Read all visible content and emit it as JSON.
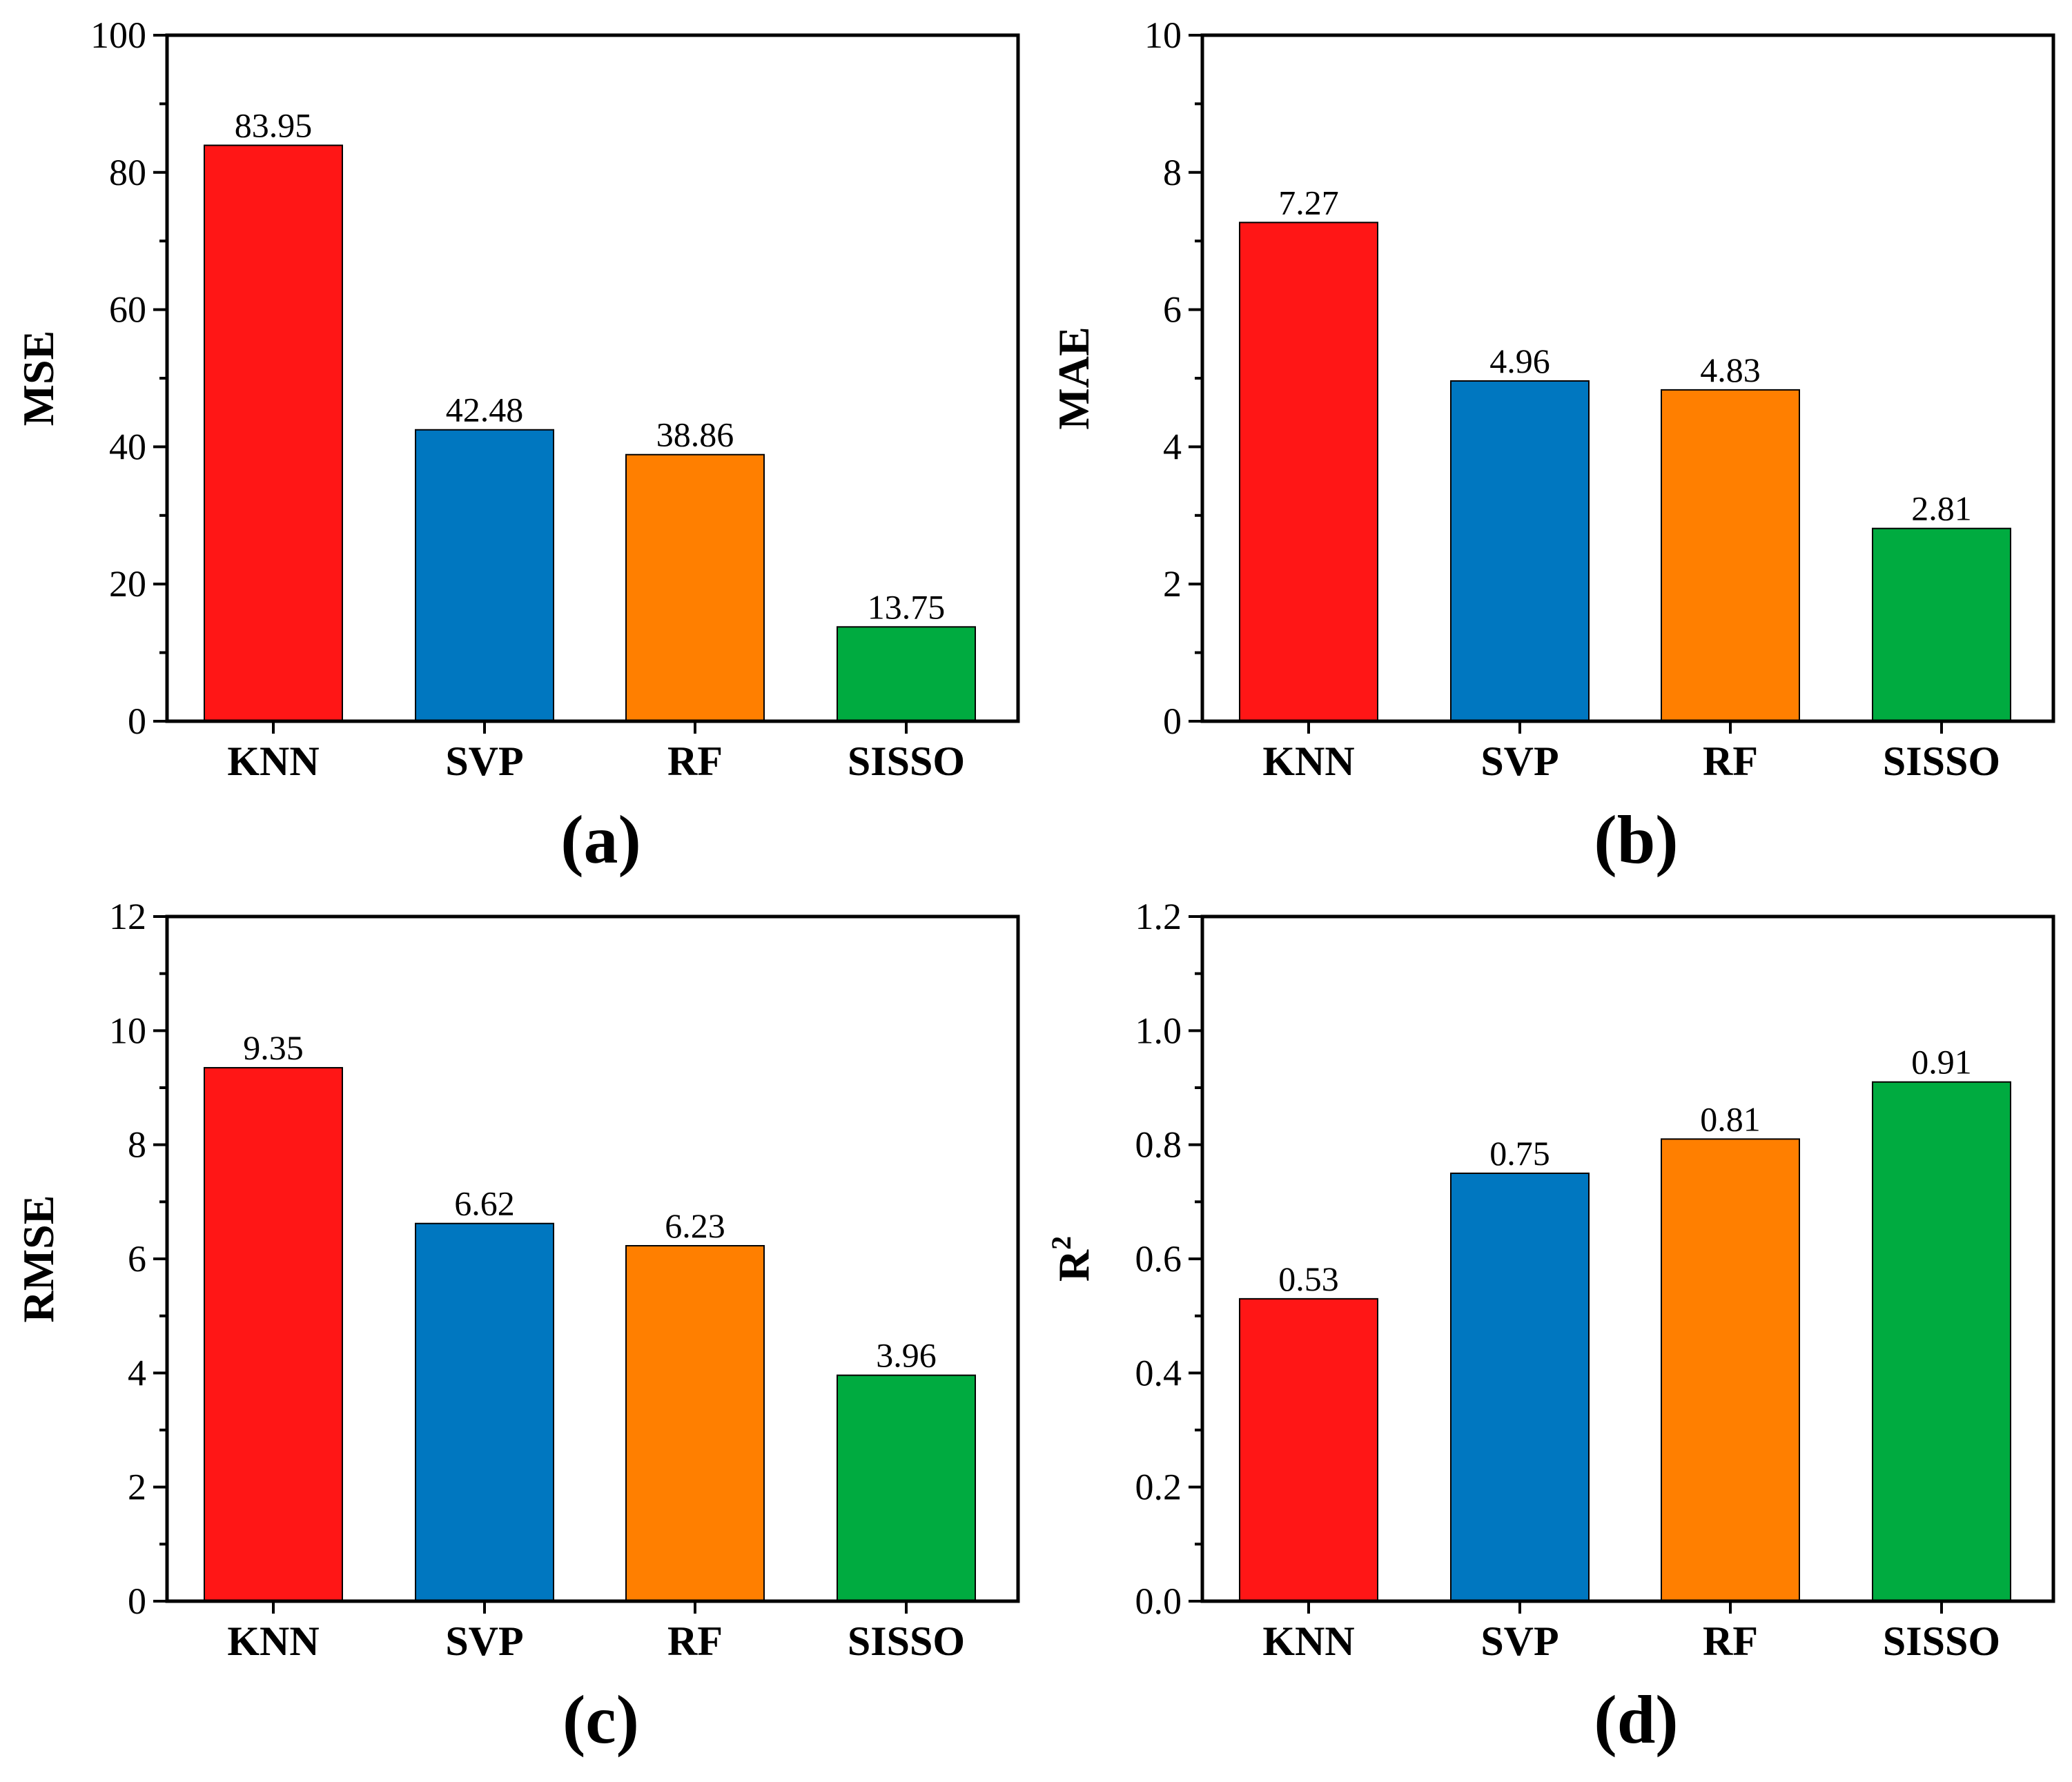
{
  "chart_data": [
    {
      "type": "bar",
      "panel_label": "(a)",
      "categories": [
        "KNN",
        "SVP",
        "RF",
        "SISSO"
      ],
      "values": [
        83.95,
        42.48,
        38.86,
        13.75
      ],
      "data_labels": [
        "83.95",
        "42.48",
        "38.86",
        "13.75"
      ],
      "ylabel": "MSE",
      "ylabel_sup": "",
      "ylim": [
        0,
        100
      ],
      "major_ticks": [
        0,
        20,
        40,
        60,
        80,
        100
      ],
      "tick_labels": [
        "0",
        "20",
        "40",
        "60",
        "80",
        "100"
      ],
      "grid": false
    },
    {
      "type": "bar",
      "panel_label": "(b)",
      "categories": [
        "KNN",
        "SVP",
        "RF",
        "SISSO"
      ],
      "values": [
        7.27,
        4.96,
        4.83,
        2.81
      ],
      "data_labels": [
        "7.27",
        "4.96",
        "4.83",
        "2.81"
      ],
      "ylabel": "MAE",
      "ylabel_sup": "",
      "ylim": [
        0,
        10
      ],
      "major_ticks": [
        0,
        2,
        4,
        6,
        8,
        10
      ],
      "tick_labels": [
        "0",
        "2",
        "4",
        "6",
        "8",
        "10"
      ],
      "grid": false
    },
    {
      "type": "bar",
      "panel_label": "(c)",
      "categories": [
        "KNN",
        "SVP",
        "RF",
        "SISSO"
      ],
      "values": [
        9.35,
        6.62,
        6.23,
        3.96
      ],
      "data_labels": [
        "9.35",
        "6.62",
        "6.23",
        "3.96"
      ],
      "ylabel": "RMSE",
      "ylabel_sup": "",
      "ylim": [
        0,
        12
      ],
      "major_ticks": [
        0,
        2,
        4,
        6,
        8,
        10,
        12
      ],
      "tick_labels": [
        "0",
        "2",
        "4",
        "6",
        "8",
        "10",
        "12"
      ],
      "grid": false
    },
    {
      "type": "bar",
      "panel_label": "(d)",
      "categories": [
        "KNN",
        "SVP",
        "RF",
        "SISSO"
      ],
      "values": [
        0.53,
        0.75,
        0.81,
        0.91
      ],
      "data_labels": [
        "0.53",
        "0.75",
        "0.81",
        "0.91"
      ],
      "ylabel": "R",
      "ylabel_sup": "2",
      "ylim": [
        0,
        1.2
      ],
      "major_ticks": [
        0,
        0.2,
        0.4,
        0.6,
        0.8,
        1.0,
        1.2
      ],
      "tick_labels": [
        "0.0",
        "0.2",
        "0.4",
        "0.6",
        "0.8",
        "1.0",
        "1.2"
      ],
      "grid": false
    }
  ],
  "colors": {
    "KNN": "#ff1616",
    "SVP": "#0077c0",
    "RF": "#ff7f00",
    "SISSO": "#00ab40"
  }
}
